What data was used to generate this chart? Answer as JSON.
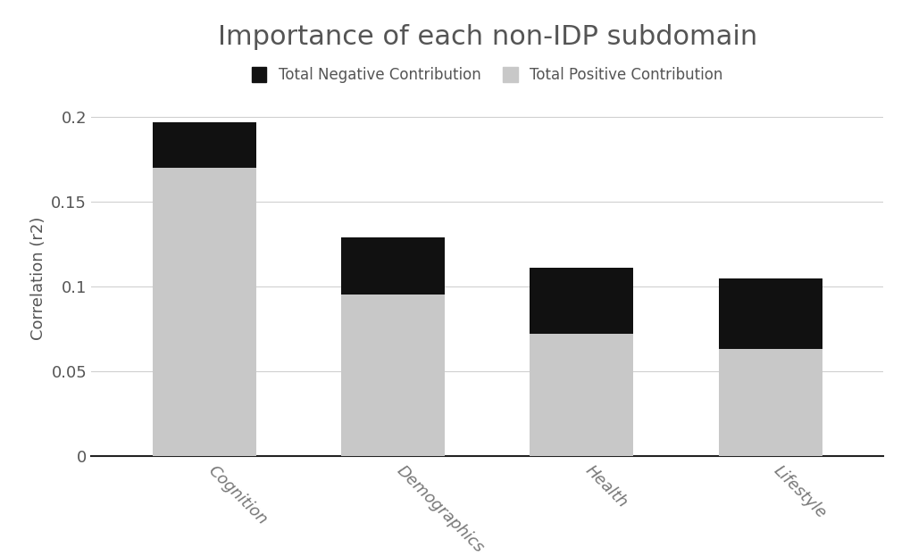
{
  "title": "Importance of each non-IDP subdomain",
  "ylabel": "Correlation (r2)",
  "categories": [
    "Cognition",
    "Demographics",
    "Health",
    "Lifestyle"
  ],
  "positive_values": [
    0.17,
    0.095,
    0.072,
    0.063
  ],
  "negative_values": [
    0.027,
    0.034,
    0.039,
    0.042
  ],
  "positive_color": "#c8c8c8",
  "negative_color": "#111111",
  "background_color": "#ffffff",
  "ylim": [
    0,
    0.21
  ],
  "yticks": [
    0,
    0.05,
    0.1,
    0.15,
    0.2
  ],
  "ytick_labels": [
    "0",
    "0.05",
    "0.1",
    "0.15",
    "0.2"
  ],
  "title_fontsize": 22,
  "title_color": "#555555",
  "axis_label_fontsize": 13,
  "tick_fontsize": 13,
  "legend_fontsize": 12,
  "bar_width": 0.55,
  "legend_neg_label": "Total Negative Contribution",
  "legend_pos_label": "Total Positive Contribution",
  "xtick_rotation": -45,
  "xtick_ha": "left"
}
